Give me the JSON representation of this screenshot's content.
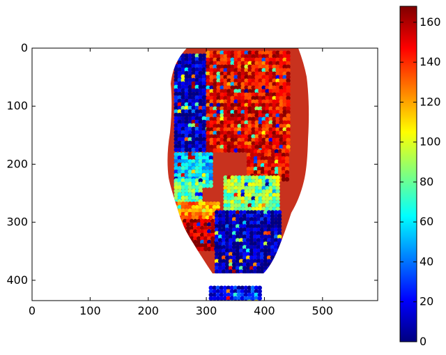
{
  "chart_data": {
    "type": "heatmap",
    "title": "",
    "xlabel": "",
    "ylabel": "",
    "xlim": [
      0,
      595
    ],
    "ylim": [
      435,
      0
    ],
    "x_ticks": [
      0,
      100,
      200,
      300,
      400,
      500
    ],
    "y_ticks": [
      0,
      100,
      200,
      300,
      400
    ],
    "grid": false,
    "colormap": "jet",
    "colorbar": {
      "range": [
        0,
        168
      ],
      "ticks": [
        0,
        20,
        40,
        60,
        80,
        100,
        120,
        140,
        160
      ],
      "placement": "right"
    },
    "regions": [
      {
        "name": "upper-left-low",
        "x": [
          245,
          300
        ],
        "y": [
          10,
          175
        ],
        "value": 10
      },
      {
        "name": "upper-red",
        "x": [
          300,
          440
        ],
        "y": [
          5,
          175
        ],
        "value": 150
      },
      {
        "name": "cyan-band",
        "x": [
          245,
          305
        ],
        "y": [
          180,
          235
        ],
        "value": 55
      },
      {
        "name": "green-left",
        "x": [
          245,
          290
        ],
        "y": [
          225,
          265
        ],
        "value": 80
      },
      {
        "name": "orange-left",
        "x": [
          245,
          320
        ],
        "y": [
          265,
          315
        ],
        "value": 125
      },
      {
        "name": "red-lower-left",
        "x": [
          260,
          330
        ],
        "y": [
          295,
          345
        ],
        "value": 160
      },
      {
        "name": "right-mid-red",
        "x": [
          370,
          440
        ],
        "y": [
          175,
          225
        ],
        "value": 150
      },
      {
        "name": "green-right",
        "x": [
          330,
          420
        ],
        "y": [
          220,
          285
        ],
        "value": 85
      },
      {
        "name": "bottom-blue",
        "x": [
          315,
          425
        ],
        "y": [
          280,
          390
        ],
        "value": 8
      },
      {
        "name": "bottom-tail",
        "x": [
          305,
          390
        ],
        "y": [
          410,
          435
        ],
        "value": 20
      }
    ]
  },
  "colors": {
    "axis": "#000000",
    "background": "#ffffff",
    "jet_stops": [
      "#00007f",
      "#0000ff",
      "#007fff",
      "#00ffff",
      "#7fff7f",
      "#ffff00",
      "#ff7f00",
      "#ff0000",
      "#7f0000"
    ]
  }
}
